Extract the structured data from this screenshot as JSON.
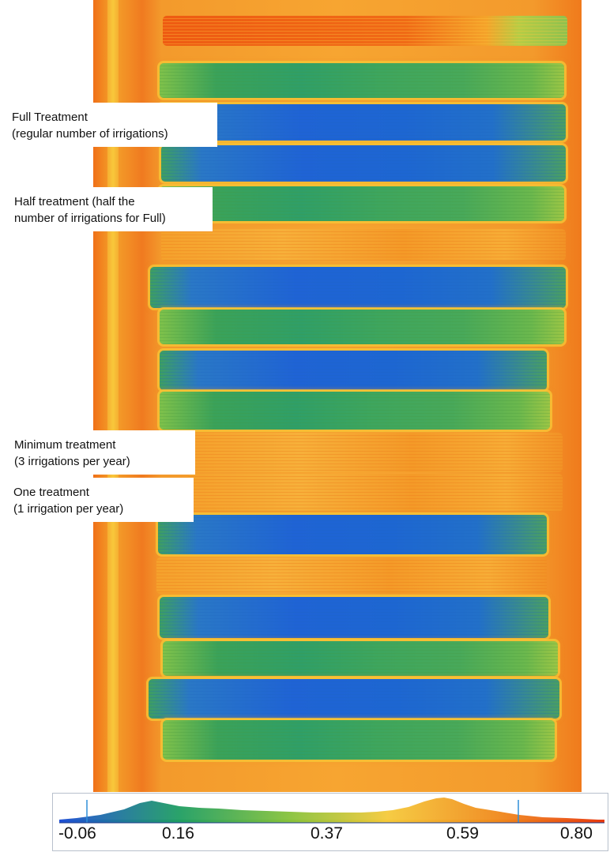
{
  "annotations": [
    {
      "line1": "Full Treatment",
      "line2": "(regular number of irrigations)"
    },
    {
      "line1": "Half treatment (half the",
      "line2": "number of irrigations for Full)"
    },
    {
      "line1": "Minimum treatment",
      "line2": "(3 irrigations per year)"
    },
    {
      "line1": "One treatment",
      "line2": "(1 irrigation per year)"
    }
  ],
  "colorbar": {
    "ticks": [
      "-0.06",
      "0.16",
      "0.37",
      "0.59",
      "0.80"
    ],
    "range": [
      -0.06,
      0.8
    ],
    "colors": [
      "#1f4fd6",
      "#1f9e62",
      "#86c23b",
      "#f5c93a",
      "#f08a1c",
      "#e83b10"
    ]
  },
  "strips": [
    {
      "type": "redtop"
    },
    {
      "type": "green"
    },
    {
      "type": "blue"
    },
    {
      "type": "blue"
    },
    {
      "type": "green"
    },
    {
      "type": "orange"
    },
    {
      "type": "blue"
    },
    {
      "type": "green"
    },
    {
      "type": "blue"
    },
    {
      "type": "green"
    },
    {
      "type": "orange"
    },
    {
      "type": "orange"
    },
    {
      "type": "blue"
    },
    {
      "type": "orange"
    },
    {
      "type": "blue"
    },
    {
      "type": "green"
    },
    {
      "type": "blue"
    },
    {
      "type": "green"
    }
  ]
}
